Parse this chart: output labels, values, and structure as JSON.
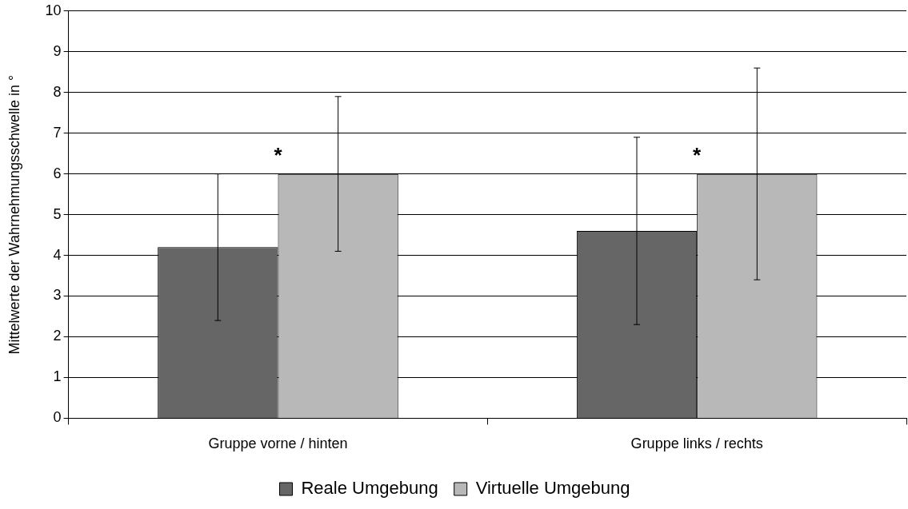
{
  "chart_data": {
    "type": "bar",
    "ylabel": "Mittelwerte der Wahrnehmungsschwelle in °",
    "categories": [
      "Gruppe vorne / hinten",
      "Gruppe links / rechts"
    ],
    "series": [
      {
        "name": "Reale Umgebung",
        "color": "#666666",
        "values": [
          4.2,
          4.6
        ],
        "errors": [
          1.8,
          2.3
        ]
      },
      {
        "name": "Virtuelle Umgebung",
        "color": "#b8b8b8",
        "values": [
          6.0,
          6.0
        ],
        "errors": [
          1.9,
          2.6
        ]
      }
    ],
    "ylim": [
      0,
      10
    ],
    "yticks": [
      0,
      1,
      2,
      3,
      4,
      5,
      6,
      7,
      8,
      9,
      10
    ],
    "grid": "y",
    "legend": "bottom",
    "annotations": [
      "*",
      "*"
    ]
  }
}
